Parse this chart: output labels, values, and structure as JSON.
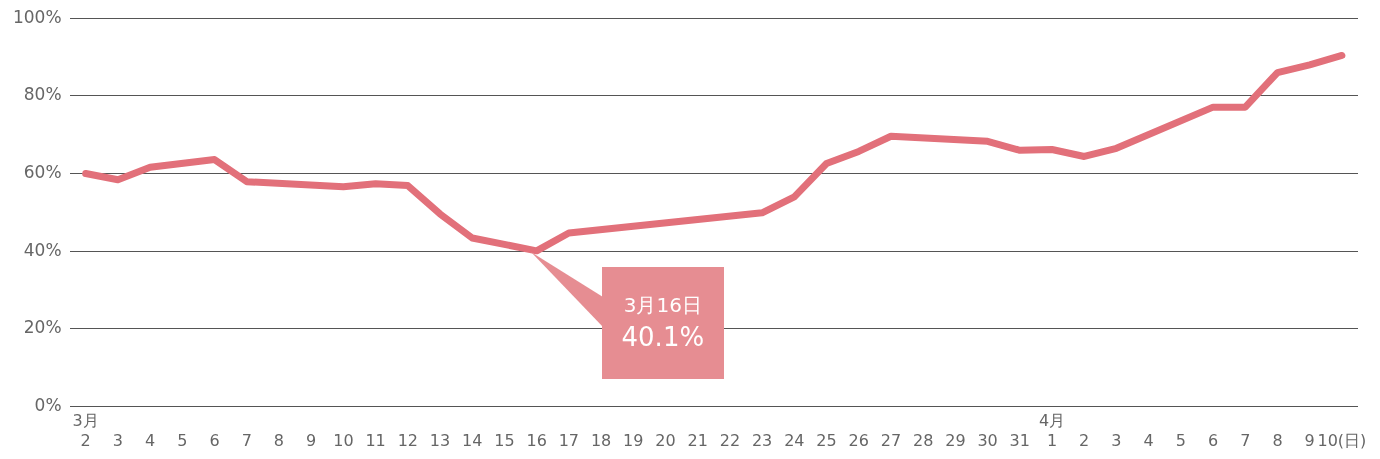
{
  "chart_data": {
    "type": "line",
    "categories": [
      "3月\n2",
      "3",
      "4",
      "5",
      "6",
      "7",
      "8",
      "9",
      "10",
      "11",
      "12",
      "13",
      "14",
      "15",
      "16",
      "17",
      "18",
      "19",
      "20",
      "21",
      "22",
      "23",
      "24",
      "25",
      "26",
      "27",
      "28",
      "29",
      "30",
      "31",
      "4月\n1",
      "2",
      "3",
      "4",
      "5",
      "6",
      "7",
      "8",
      "9",
      "10(日)"
    ],
    "series": [
      {
        "color": "#e2707a",
        "values": [
          60,
          58.4,
          61.6,
          null,
          63.6,
          57.9,
          null,
          null,
          56.6,
          57.4,
          56.9,
          49.6,
          43.4,
          null,
          40.1,
          44.7,
          null,
          null,
          null,
          null,
          null,
          49.9,
          54,
          62.6,
          65.7,
          69.6,
          null,
          null,
          68.3,
          66,
          66.2,
          64.4,
          66.5,
          null,
          null,
          77.1,
          77.1,
          86,
          88,
          90.4
        ]
      }
    ],
    "ylim": [
      0,
      100
    ],
    "yticks": [
      {
        "value": 0,
        "label": "0%"
      },
      {
        "value": 20,
        "label": "20%"
      },
      {
        "value": 40,
        "label": "40%"
      },
      {
        "value": 60,
        "label": "60%"
      },
      {
        "value": 80,
        "label": "80%"
      },
      {
        "value": 100,
        "label": "100%"
      }
    ],
    "grid": "y",
    "legend": false,
    "marker": "none",
    "line_style": "solid",
    "annotations": [
      "3月16日\n40.1%"
    ]
  }
}
